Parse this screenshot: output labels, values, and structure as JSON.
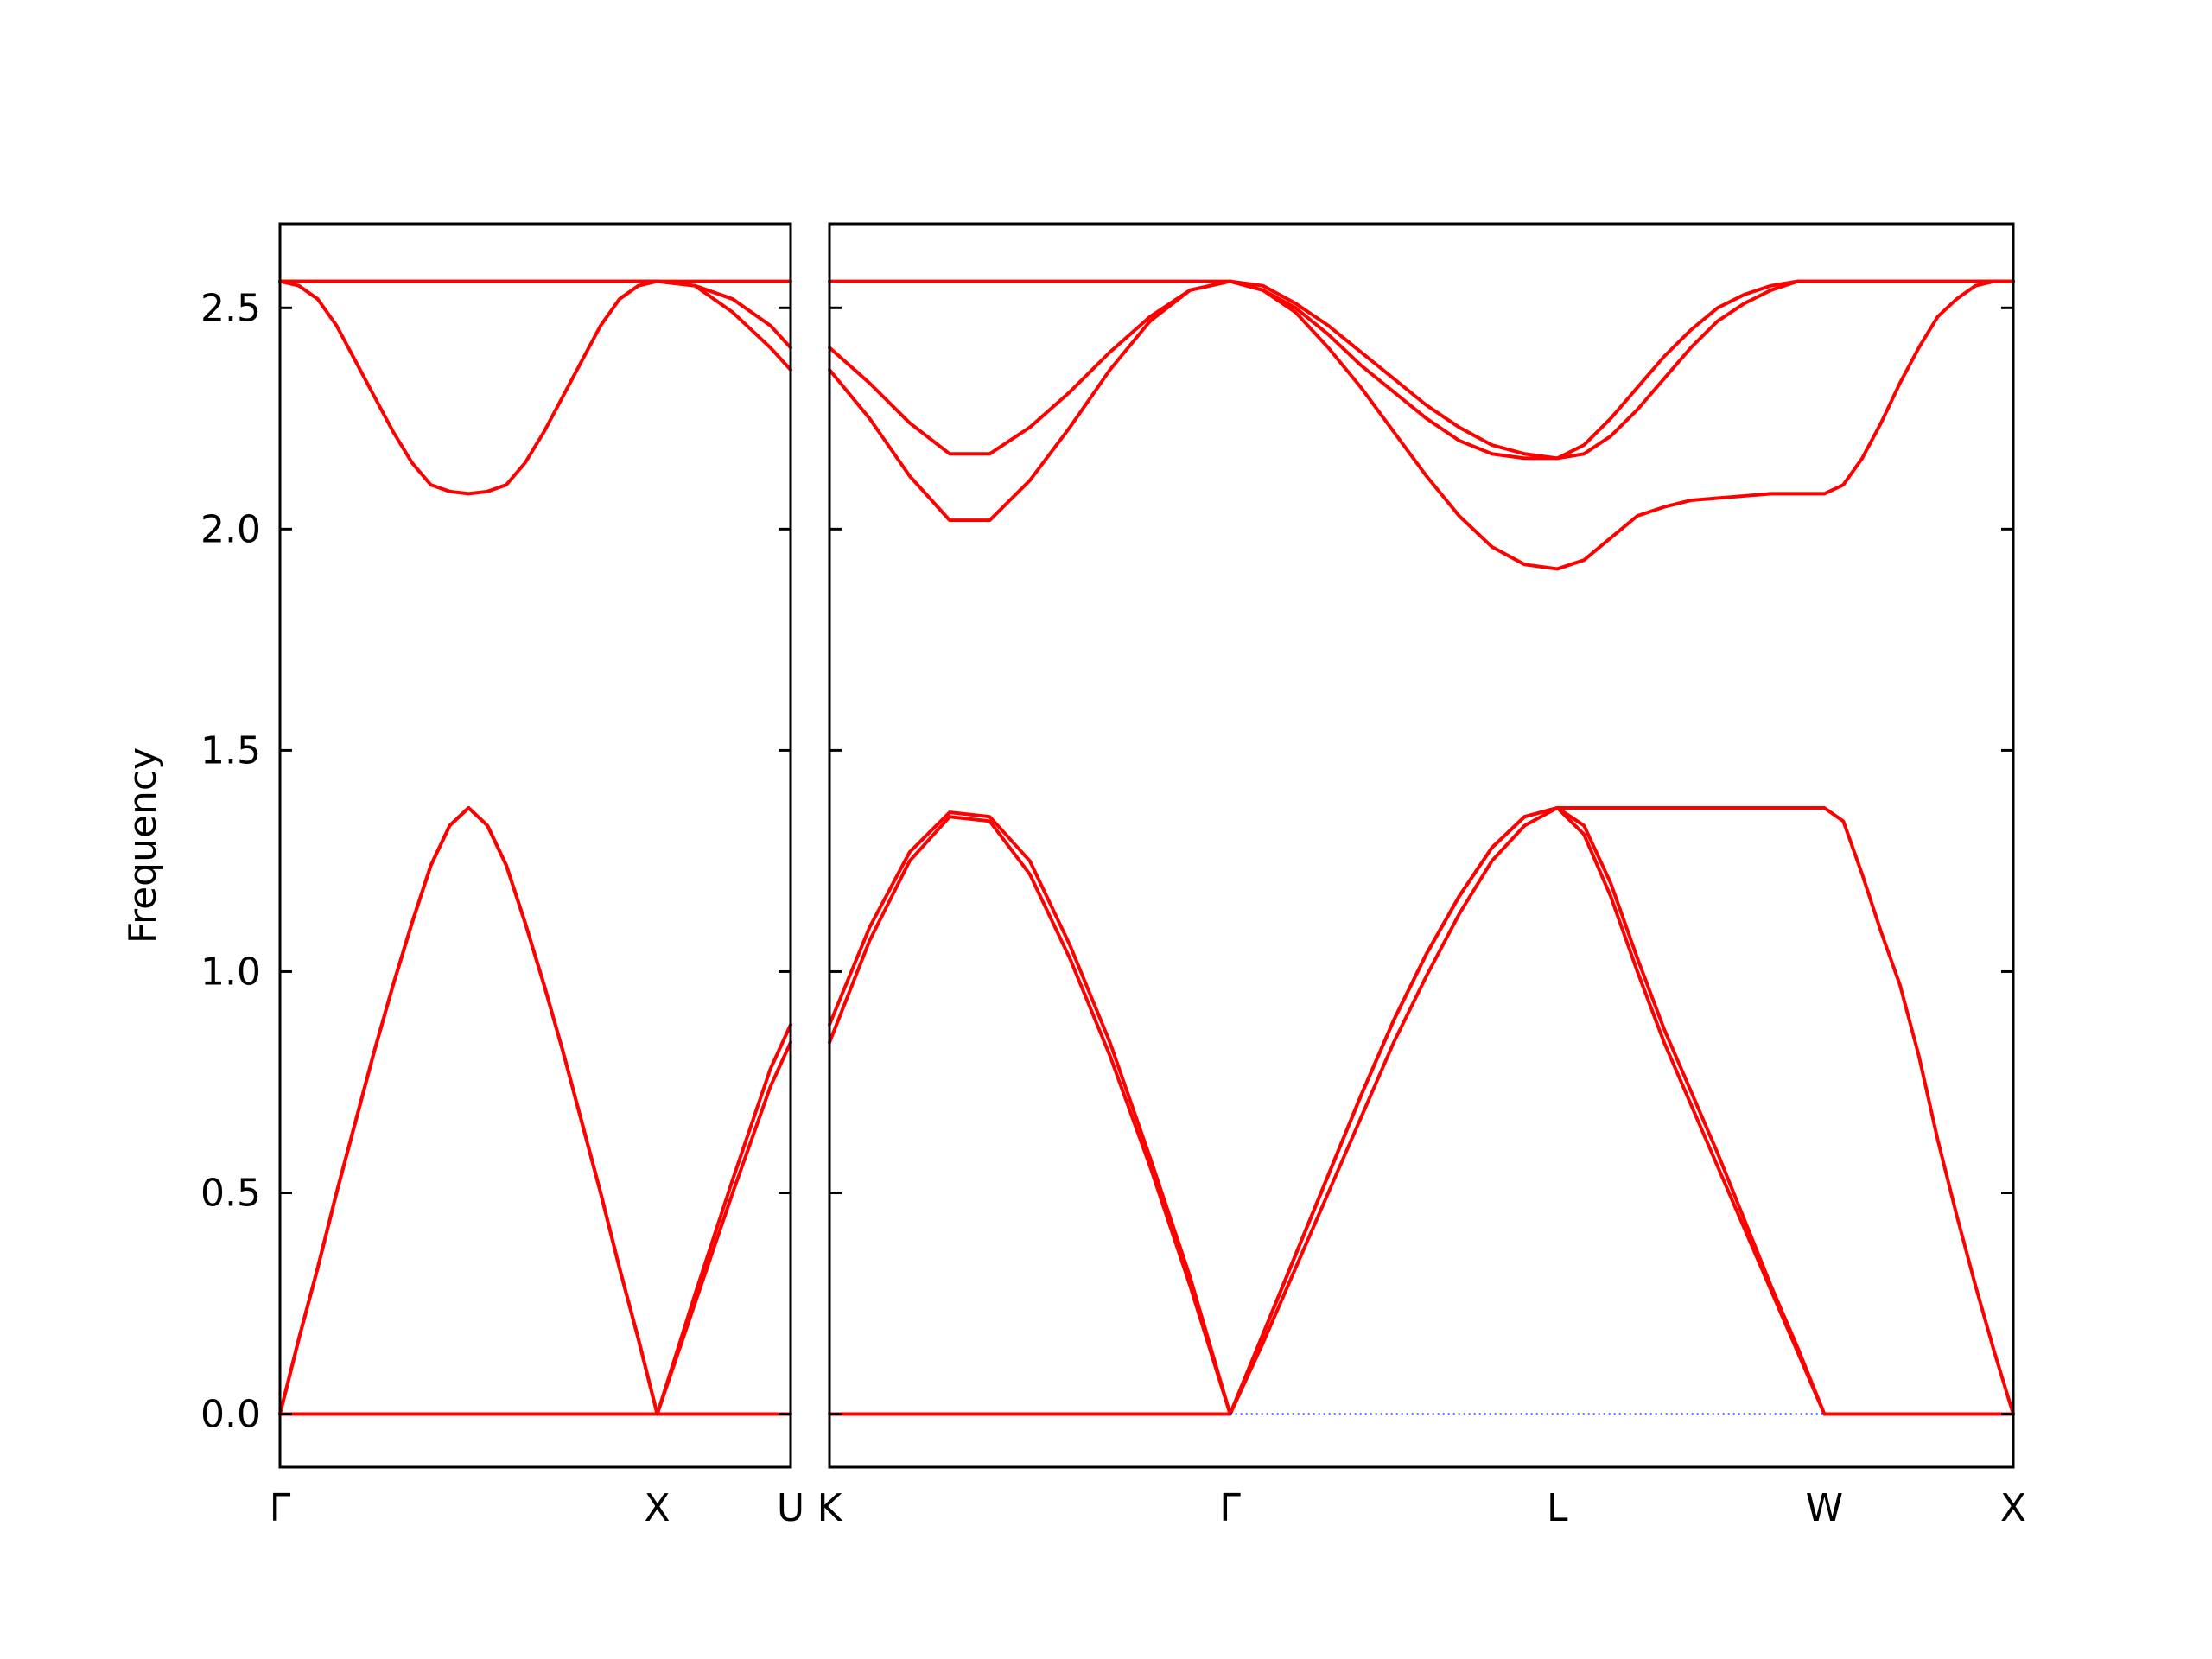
{
  "chart_data": [
    {
      "type": "line",
      "ylabel": "Frequency",
      "x": [
        0,
        0.05,
        0.1,
        0.15,
        0.2,
        0.25,
        0.3,
        0.35,
        0.4,
        0.45,
        0.5,
        0.55,
        0.6,
        0.65,
        0.7,
        0.75,
        0.8,
        0.85,
        0.9,
        0.95,
        1,
        1.1,
        1.2,
        1.3,
        1.3536
      ],
      "xlim": [
        0,
        1.3536
      ],
      "xticks": [
        {
          "value": 0,
          "label": "Γ"
        },
        {
          "value": 1,
          "label": "X"
        },
        {
          "value": 1.3536,
          "label": "U"
        }
      ],
      "ylim": [
        -0.12,
        2.69
      ],
      "yticks": [
        {
          "value": 0,
          "label": "0.0"
        },
        0.5,
        {
          "value": 1,
          "label": "1.0"
        },
        1.5,
        {
          "value": 2,
          "label": "2.0"
        },
        2.5
      ],
      "series": [
        {
          "color": "#ff0000",
          "values": [
            0,
            0,
            0,
            0,
            0,
            0,
            0,
            0,
            0,
            0,
            0,
            0,
            0,
            0,
            0,
            0,
            0,
            0,
            0,
            0,
            0,
            0,
            0,
            0,
            0
          ]
        },
        {
          "color": "#ff0000",
          "values": [
            0,
            0.17,
            0.33,
            0.5,
            0.66,
            0.82,
            0.97,
            1.11,
            1.24,
            1.33,
            1.37,
            1.33,
            1.24,
            1.11,
            0.97,
            0.82,
            0.66,
            0.5,
            0.33,
            0.17,
            0,
            0.27,
            0.53,
            0.78,
            0.88
          ]
        },
        {
          "color": "#ff0000",
          "values": [
            0,
            0.17,
            0.33,
            0.5,
            0.66,
            0.82,
            0.97,
            1.11,
            1.24,
            1.33,
            1.37,
            1.33,
            1.24,
            1.11,
            0.97,
            0.82,
            0.66,
            0.5,
            0.33,
            0.17,
            0,
            0.25,
            0.5,
            0.74,
            0.84
          ]
        },
        {
          "color": "#ff0000",
          "values": [
            2.56,
            2.56,
            2.56,
            2.56,
            2.56,
            2.56,
            2.56,
            2.56,
            2.56,
            2.56,
            2.56,
            2.56,
            2.56,
            2.56,
            2.56,
            2.56,
            2.56,
            2.56,
            2.56,
            2.56,
            2.56,
            2.56,
            2.56,
            2.56,
            2.56
          ]
        },
        {
          "color": "#ff0000",
          "values": [
            2.56,
            2.55,
            2.52,
            2.46,
            2.38,
            2.3,
            2.22,
            2.15,
            2.1,
            2.085,
            2.08,
            2.085,
            2.1,
            2.15,
            2.22,
            2.3,
            2.38,
            2.46,
            2.52,
            2.55,
            2.56,
            2.55,
            2.52,
            2.46,
            2.41
          ]
        },
        {
          "color": "#ff0000",
          "values": [
            2.56,
            2.56,
            2.56,
            2.56,
            2.56,
            2.56,
            2.56,
            2.56,
            2.56,
            2.56,
            2.56,
            2.56,
            2.56,
            2.56,
            2.56,
            2.56,
            2.56,
            2.56,
            2.56,
            2.56,
            2.56,
            2.55,
            2.49,
            2.41,
            2.36
          ]
        }
      ]
    },
    {
      "type": "line",
      "show_yticklabels": false,
      "x": [
        1.3536,
        1.4597,
        1.5657,
        1.6718,
        1.7778,
        1.8839,
        1.9899,
        2.096,
        2.2021,
        2.3081,
        2.4142,
        2.5008,
        2.5874,
        2.674,
        2.7606,
        2.8472,
        2.9338,
        3.0204,
        3.107,
        3.1936,
        3.2802,
        3.3509,
        3.4216,
        3.4923,
        3.563,
        3.6338,
        3.7045,
        3.7752,
        3.8459,
        3.9166,
        3.9873,
        4.0373,
        4.0873,
        4.1373,
        4.1873,
        4.2373,
        4.2873,
        4.3373,
        4.3873,
        4.4373,
        4.4873
      ],
      "xlim": [
        1.3536,
        4.4873
      ],
      "xticks": [
        {
          "value": 1.3536,
          "label": "K"
        },
        {
          "value": 2.4142,
          "label": "Γ"
        },
        {
          "value": 3.2802,
          "label": "L"
        },
        {
          "value": 3.9873,
          "label": "W"
        },
        {
          "value": 4.4873,
          "label": "X"
        }
      ],
      "ylim": [
        -0.12,
        2.69
      ],
      "yticks": [
        0,
        0.5,
        1,
        1.5,
        2,
        2.5
      ],
      "series": [
        {
          "color": "#ff0000",
          "values": [
            0,
            0,
            0,
            0,
            0,
            0,
            0,
            0,
            0,
            0,
            0,
            0.18,
            0.36,
            0.54,
            0.72,
            0.89,
            1.04,
            1.17,
            1.28,
            1.35,
            1.37,
            1.37,
            1.37,
            1.37,
            1.37,
            1.37,
            1.37,
            1.37,
            1.37,
            1.37,
            1.37,
            1.34,
            1.22,
            1.09,
            0.97,
            0.81,
            0.62,
            0.45,
            0.29,
            0.14,
            0
          ]
        },
        {
          "color": "#ff0000",
          "values": [
            0.88,
            1.1,
            1.27,
            1.36,
            1.35,
            1.25,
            1.06,
            0.84,
            0.58,
            0.31,
            0,
            0.18,
            0.36,
            0.54,
            0.72,
            0.89,
            1.04,
            1.17,
            1.28,
            1.35,
            1.37,
            1.33,
            1.2,
            1.03,
            0.87,
            0.73,
            0.59,
            0.44,
            0.29,
            0.15,
            0,
            0,
            0,
            0,
            0,
            0,
            0,
            0,
            0,
            0,
            0
          ]
        },
        {
          "color": "#ff0000",
          "values": [
            0.84,
            1.07,
            1.25,
            1.35,
            1.34,
            1.22,
            1.03,
            0.81,
            0.56,
            0.29,
            0,
            0.16,
            0.33,
            0.5,
            0.67,
            0.84,
            0.99,
            1.13,
            1.25,
            1.33,
            1.37,
            1.31,
            1.17,
            1,
            0.84,
            0.7,
            0.56,
            0.42,
            0.28,
            0.14,
            0,
            0,
            0,
            0,
            0,
            0,
            0,
            0,
            0,
            0,
            0
          ]
        },
        {
          "color": "#ff0000",
          "values": [
            2.56,
            2.56,
            2.56,
            2.56,
            2.56,
            2.56,
            2.56,
            2.56,
            2.56,
            2.56,
            2.56,
            2.55,
            2.51,
            2.46,
            2.4,
            2.34,
            2.28,
            2.23,
            2.19,
            2.17,
            2.16,
            2.19,
            2.25,
            2.32,
            2.39,
            2.45,
            2.5,
            2.53,
            2.55,
            2.56,
            2.56,
            2.56,
            2.56,
            2.56,
            2.56,
            2.56,
            2.56,
            2.56,
            2.56,
            2.56,
            2.56
          ]
        },
        {
          "color": "#ff0000",
          "values": [
            2.41,
            2.33,
            2.24,
            2.17,
            2.17,
            2.23,
            2.31,
            2.4,
            2.48,
            2.54,
            2.56,
            2.54,
            2.5,
            2.44,
            2.37,
            2.31,
            2.25,
            2.2,
            2.17,
            2.16,
            2.16,
            2.17,
            2.21,
            2.27,
            2.34,
            2.41,
            2.47,
            2.51,
            2.54,
            2.56,
            2.56,
            2.56,
            2.56,
            2.56,
            2.56,
            2.56,
            2.56,
            2.56,
            2.56,
            2.56,
            2.56
          ]
        },
        {
          "color": "#ff0000",
          "values": [
            2.36,
            2.25,
            2.12,
            2.02,
            2.02,
            2.11,
            2.23,
            2.36,
            2.47,
            2.54,
            2.56,
            2.54,
            2.49,
            2.41,
            2.32,
            2.22,
            2.12,
            2.03,
            1.96,
            1.92,
            1.91,
            1.93,
            1.98,
            2.03,
            2.05,
            2.065,
            2.07,
            2.075,
            2.08,
            2.08,
            2.08,
            2.1,
            2.16,
            2.24,
            2.33,
            2.41,
            2.48,
            2.52,
            2.55,
            2.56,
            2.56
          ]
        },
        {
          "color": "#0000ff",
          "linestyle": "dotted",
          "values": [
            null,
            null,
            null,
            null,
            null,
            null,
            null,
            null,
            null,
            null,
            0,
            0,
            0,
            0,
            0,
            0,
            0,
            0,
            0,
            0,
            0,
            0,
            0,
            0,
            0,
            0,
            0,
            0,
            0,
            0,
            0,
            null,
            null,
            null,
            null,
            null,
            null,
            null,
            null,
            null,
            null
          ]
        }
      ]
    }
  ]
}
